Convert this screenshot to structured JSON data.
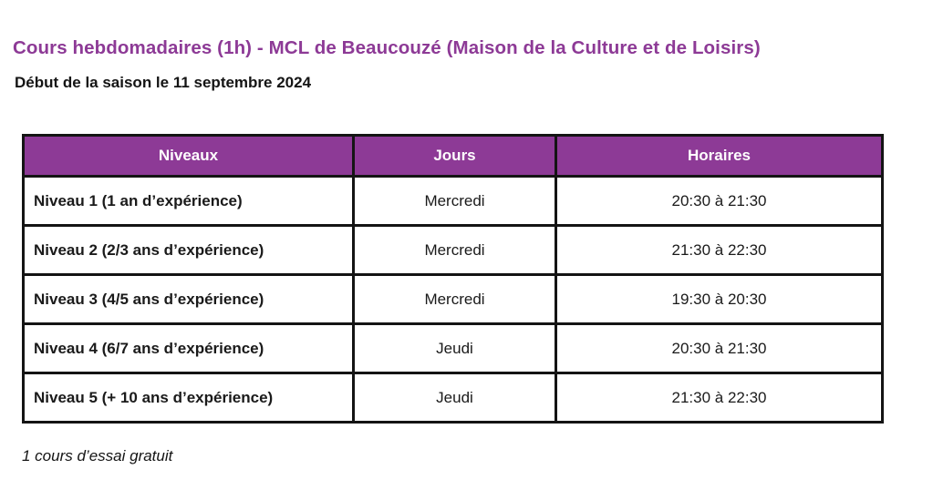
{
  "page": {
    "title": "Cours hebdomadaires (1h) - MCL de Beaucouzé (Maison de la Culture et de Loisirs)",
    "subtitle": "Début de la saison le 11 septembre 2024",
    "footnote": "1 cours d’essai gratuit"
  },
  "colors": {
    "accent_purple": "#8d3a96",
    "header_text": "#ffffff",
    "border": "#141414",
    "body_text": "#1a1a1a",
    "background": "#ffffff"
  },
  "table": {
    "columns": [
      "Niveaux",
      "Jours",
      "Horaires"
    ],
    "rows": [
      {
        "niveau": "Niveau 1 (1 an d’expérience)",
        "jour": "Mercredi",
        "horaire": "20:30 à 21:30"
      },
      {
        "niveau": "Niveau 2 (2/3 ans d’expérience)",
        "jour": "Mercredi",
        "horaire": "21:30 à 22:30"
      },
      {
        "niveau": "Niveau 3 (4/5 ans d’expérience)",
        "jour": "Mercredi",
        "horaire": "19:30 à 20:30"
      },
      {
        "niveau": "Niveau 4 (6/7 ans d’expérience)",
        "jour": "Jeudi",
        "horaire": "20:30 à 21:30"
      },
      {
        "niveau": "Niveau 5 (+ 10 ans d’expérience)",
        "jour": "Jeudi",
        "horaire": "21:30 à 22:30"
      }
    ]
  }
}
